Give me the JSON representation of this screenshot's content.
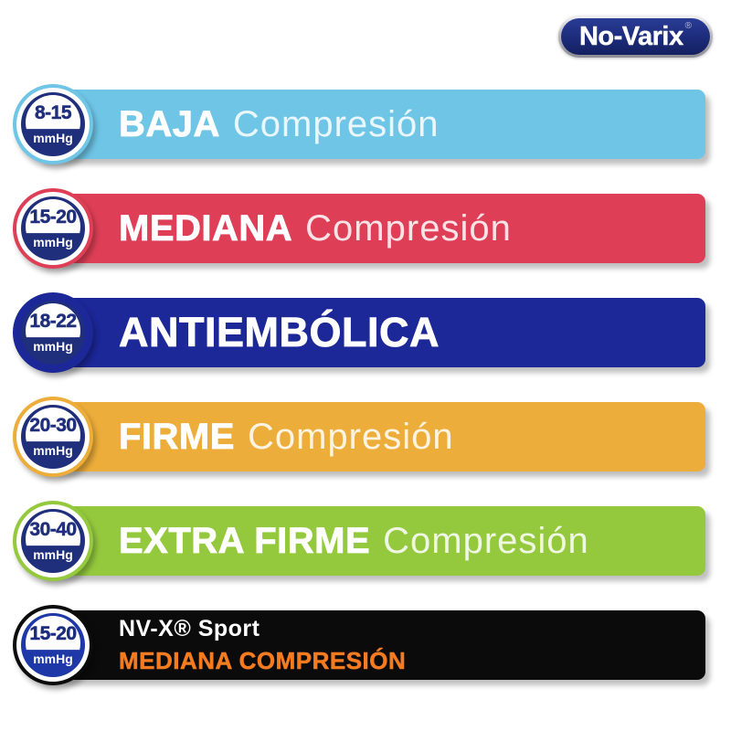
{
  "logo": {
    "text": "No-Varix",
    "registered": "®",
    "pill_color": "#1c2b7a"
  },
  "colors": {
    "baja": "#6ec5e6",
    "mediana": "#de3f56",
    "antiembolica": "#1c2798",
    "firme": "#edad3a",
    "extra_firme": "#94c93d",
    "sport": "#0b0b0b",
    "badge_navy": "#202f7c",
    "badge_sport_blue": "#1e38a8",
    "sport_accent_orange": "#f47b20",
    "white": "#ffffff"
  },
  "rows": [
    {
      "range": "8-15",
      "unit": "mmHg",
      "bold": "BAJA",
      "light": "Compresión",
      "band_color": "#6ec5e6",
      "ring_color": "#ffffff",
      "badge_color": "#202f7c",
      "range_color": "#202f7c"
    },
    {
      "range": "15-20",
      "unit": "mmHg",
      "bold": "MEDIANA",
      "light": "Compresión",
      "band_color": "#de3f56",
      "ring_color": "#ffffff",
      "badge_color": "#202f7c",
      "range_color": "#202f7c"
    },
    {
      "range": "18-22",
      "unit": "mmHg",
      "bold": "ANTIEMBÓLICA",
      "light": "",
      "band_color": "#1c2798",
      "ring_color": "#1c2798",
      "badge_color": "#202f7c",
      "range_color": "#202f7c"
    },
    {
      "range": "20-30",
      "unit": "mmHg",
      "bold": "FIRME",
      "light": "Compresión",
      "band_color": "#edad3a",
      "ring_color": "#ffffff",
      "badge_color": "#202f7c",
      "range_color": "#202f7c"
    },
    {
      "range": "30-40",
      "unit": "mmHg",
      "bold": "EXTRA FIRME",
      "light": "Compresión",
      "band_color": "#94c93d",
      "ring_color": "#ffffff",
      "badge_color": "#202f7c",
      "range_color": "#202f7c"
    },
    {
      "range": "15-20",
      "unit": "mmHg",
      "line1": "NV-X® Sport",
      "line2": "MEDIANA COMPRESIÓN",
      "band_color": "#0b0b0b",
      "ring_color": "#ffffff",
      "badge_color": "#1e38a8",
      "range_color": "#1c2d80",
      "accent": "#f47b20"
    }
  ]
}
